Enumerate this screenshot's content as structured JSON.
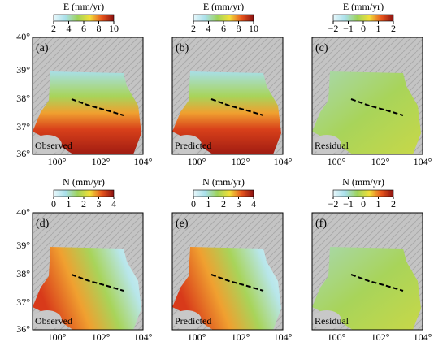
{
  "panels": [
    {
      "label": "(a)",
      "caption": "Observed",
      "colorbar": {
        "title": "E (mm/yr)",
        "ticks": [
          "2",
          "4",
          "6",
          "8",
          "10"
        ]
      }
    },
    {
      "label": "(b)",
      "caption": "Predicted",
      "colorbar": {
        "title": "E (mm/yr)",
        "ticks": [
          "2",
          "4",
          "6",
          "8",
          "10"
        ]
      }
    },
    {
      "label": "(c)",
      "caption": "Residual",
      "colorbar": {
        "title": "E (mm/yr)",
        "ticks": [
          "−2",
          "−1",
          "0",
          "1",
          "2"
        ]
      }
    },
    {
      "label": "(d)",
      "caption": "Observed",
      "colorbar": {
        "title": "N (mm/yr)",
        "ticks": [
          "0",
          "1",
          "2",
          "3",
          "4"
        ]
      }
    },
    {
      "label": "(e)",
      "caption": "Predicted",
      "colorbar": {
        "title": "N (mm/yr)",
        "ticks": [
          "0",
          "1",
          "2",
          "3",
          "4"
        ]
      }
    },
    {
      "label": "(f)",
      "caption": "Residual",
      "colorbar": {
        "title": "N (mm/yr)",
        "ticks": [
          "−2",
          "−1",
          "0",
          "1",
          "2"
        ]
      }
    }
  ],
  "latitude_ticks": [
    "40°",
    "39°",
    "38°",
    "37°",
    "36°"
  ],
  "longitude_ticks": [
    "100°",
    "102°",
    "104°"
  ]
}
